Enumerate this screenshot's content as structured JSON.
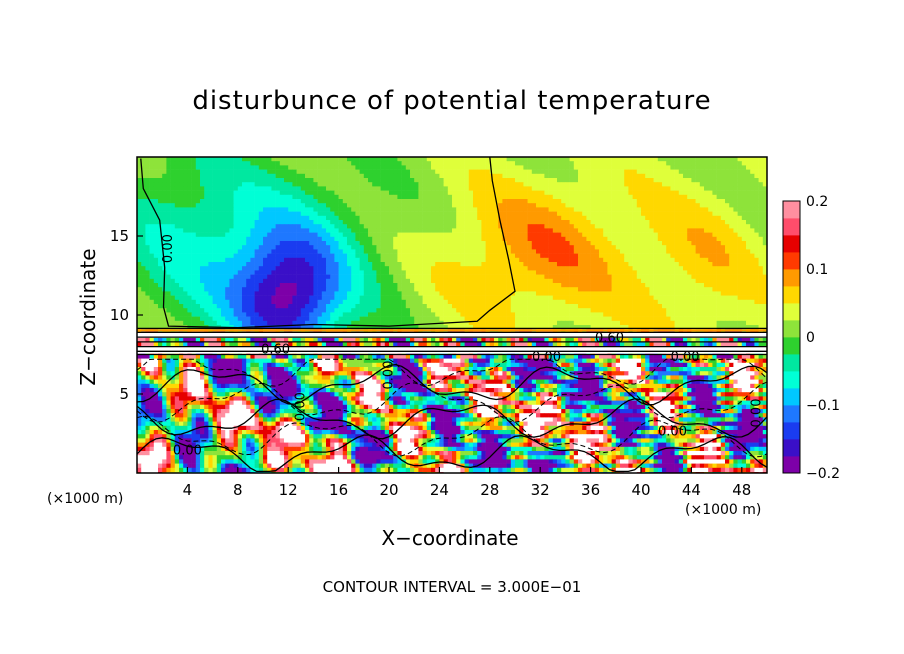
{
  "chart_data": {
    "type": "heatmap",
    "title": "disturbunce of potential temperature",
    "xlabel": "X−coordinate",
    "ylabel": "Z−coordinate",
    "x_unit": "(×1000 m)",
    "xlim": [
      0,
      50
    ],
    "ylim": [
      0,
      20
    ],
    "x_ticks": [
      4,
      8,
      12,
      16,
      20,
      24,
      28,
      32,
      36,
      40,
      44,
      48
    ],
    "y_ticks": [
      5,
      10,
      15
    ],
    "colorbar": {
      "range": [
        -0.2,
        0.2
      ],
      "tick_values": [
        0.2,
        0.1,
        0,
        -0.1,
        -0.2
      ],
      "tick_labels": [
        "0.2",
        "0.1",
        "0",
        "−0.1",
        "−0.2"
      ]
    },
    "contour_labels": [
      {
        "text": "0.00",
        "x": 2.5,
        "y": 14.2,
        "rotate": -90
      },
      {
        "text": "0.60",
        "x": 11,
        "y": 7.8,
        "rotate": 0
      },
      {
        "text": "0.60",
        "x": 37.5,
        "y": 8.5,
        "rotate": 0
      },
      {
        "text": "0.00",
        "x": 32.5,
        "y": 7.3,
        "rotate": 0
      },
      {
        "text": "0.00",
        "x": 43.5,
        "y": 7.3,
        "rotate": 0
      },
      {
        "text": "0.00",
        "x": 20,
        "y": 6.2,
        "rotate": -90
      },
      {
        "text": "0.00",
        "x": 13,
        "y": 4.2,
        "rotate": -90
      },
      {
        "text": "0.00",
        "x": 4,
        "y": 1.4,
        "rotate": 0
      },
      {
        "text": "0.00",
        "x": 42.5,
        "y": 2.6,
        "rotate": 0
      },
      {
        "text": "0.00",
        "x": 49.2,
        "y": 3.8,
        "rotate": -90
      }
    ]
  },
  "footer": "CONTOUR INTERVAL = 3.000E−01",
  "colors": {
    "scale": [
      "#7d00a8",
      "#3a0fc8",
      "#1a3cf0",
      "#1e78ff",
      "#00c8ff",
      "#00ffd6",
      "#00e8a0",
      "#2ed12e",
      "#8ee33a",
      "#dfff3a",
      "#ffd800",
      "#ff9a00",
      "#ff3a00",
      "#e60000",
      "#ff4d6b",
      "#ff8fa0"
    ]
  }
}
